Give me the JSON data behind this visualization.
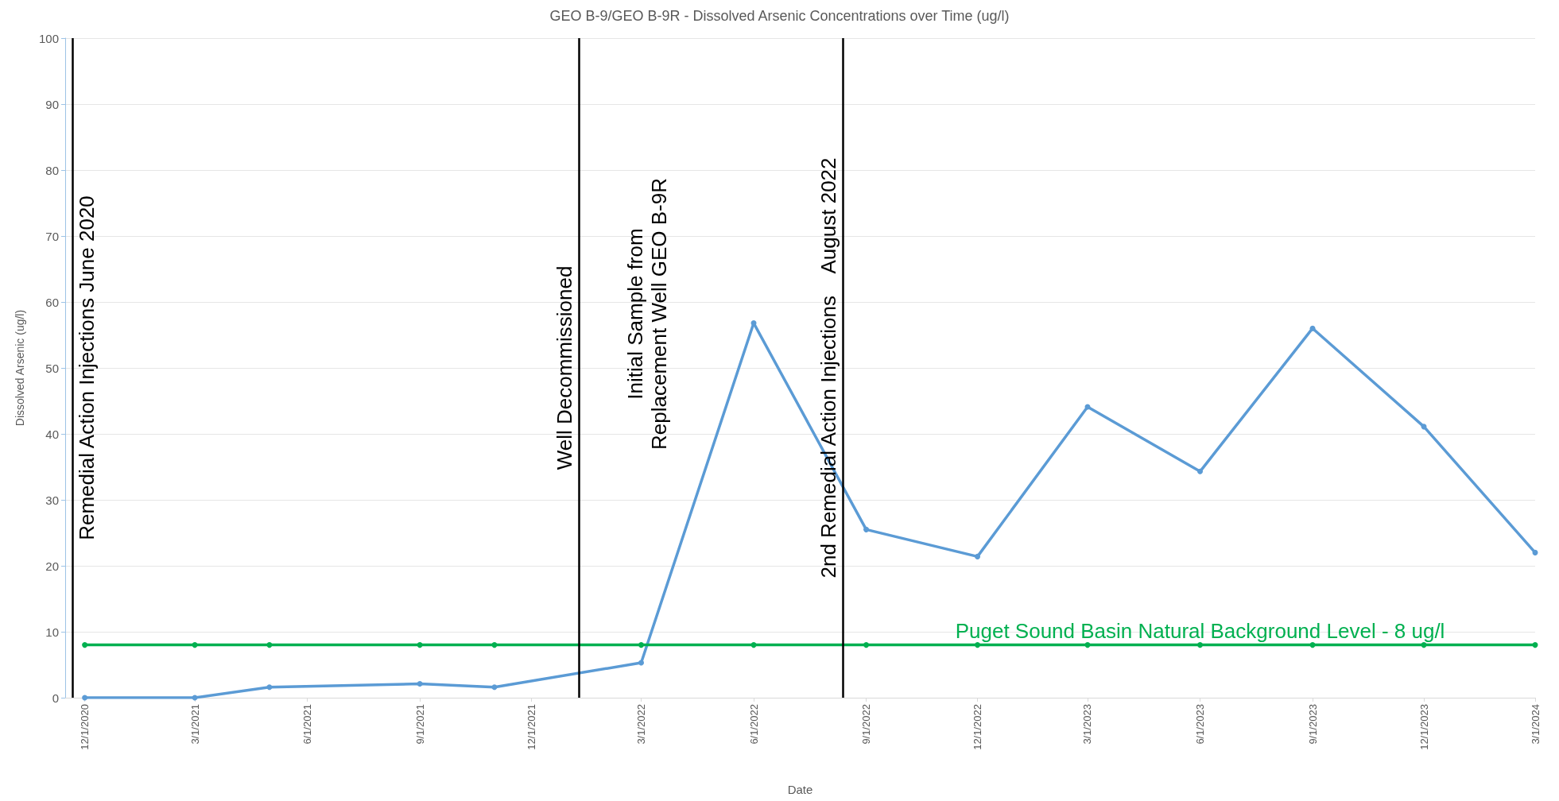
{
  "chart_data": {
    "type": "line",
    "title": "GEO B-9/GEO B-9R - Dissolved Arsenic Concentrations over Time (ug/l)",
    "xlabel": "Date",
    "ylabel": "Dissolved Arsenic (ug/l)",
    "series": [
      {
        "color": "#5b9bd5",
        "x": [
          "2020-12-01",
          "2021-03-01",
          "2021-05-01",
          "2021-09-01",
          "2021-11-01",
          "2022-03-01",
          "2022-06-01",
          "2022-09-01",
          "2022-12-01",
          "2023-03-01",
          "2023-06-01",
          "2023-09-01",
          "2023-12-01",
          "2024-03-01"
        ],
        "values": [
          0,
          0,
          1.6,
          2.1,
          1.6,
          5.3,
          56.8,
          25.5,
          21.4,
          44.1,
          34.3,
          56.0,
          41.1,
          22.0
        ]
      },
      {
        "name": "Puget Sound Basin Natural Background Level - 8 ug/l",
        "color": "#00b050",
        "x": [
          "2020-12-01",
          "2021-03-01",
          "2021-05-01",
          "2021-09-01",
          "2021-11-01",
          "2022-03-01",
          "2022-06-01",
          "2022-09-01",
          "2022-12-01",
          "2023-03-01",
          "2023-06-01",
          "2023-09-01",
          "2023-12-01",
          "2024-03-01"
        ],
        "values": [
          8,
          8,
          8,
          8,
          8,
          8,
          8,
          8,
          8,
          8,
          8,
          8,
          8,
          8
        ]
      }
    ],
    "ref_lines": [
      {
        "axis": "x",
        "value": "2020-11-21",
        "label": "Remedial Action Injections June 2020",
        "color": "#000000"
      },
      {
        "axis": "x",
        "value": "2022-01-09",
        "label": "Well Decommissioned",
        "color": "#000000"
      },
      {
        "axis": "x",
        "value": "2022-08-13",
        "label": "2nd Remedial Action Injections    August 2022",
        "color": "#000000"
      }
    ],
    "annotations": [
      "Initial Sample from\nReplacement Well GEO B-9R"
    ],
    "xlim": [
      "2020-11-15",
      "2024-03-01"
    ],
    "xticks": [
      {
        "value": "2020-12-01",
        "label": "12/1/2020"
      },
      {
        "value": "2021-03-01",
        "label": "3/1/2021"
      },
      {
        "value": "2021-06-01",
        "label": "6/1/2021"
      },
      {
        "value": "2021-09-01",
        "label": "9/1/2021"
      },
      {
        "value": "2021-12-01",
        "label": "12/1/2021"
      },
      {
        "value": "2022-03-01",
        "label": "3/1/2022"
      },
      {
        "value": "2022-06-01",
        "label": "6/1/2022"
      },
      {
        "value": "2022-09-01",
        "label": "9/1/2022"
      },
      {
        "value": "2022-12-01",
        "label": "12/1/2022"
      },
      {
        "value": "2023-03-01",
        "label": "3/1/2023"
      },
      {
        "value": "2023-06-01",
        "label": "6/1/2023"
      },
      {
        "value": "2023-09-01",
        "label": "9/1/2023"
      },
      {
        "value": "2023-12-01",
        "label": "12/1/2023"
      },
      {
        "value": "2024-03-01",
        "label": "3/1/2024"
      }
    ],
    "ylim": [
      0,
      100
    ],
    "yticks": [
      0,
      10,
      20,
      30,
      40,
      50,
      60,
      70,
      80,
      90,
      100
    ],
    "grid": "y",
    "legend": false,
    "marker": "circle",
    "line_style": "solid"
  }
}
